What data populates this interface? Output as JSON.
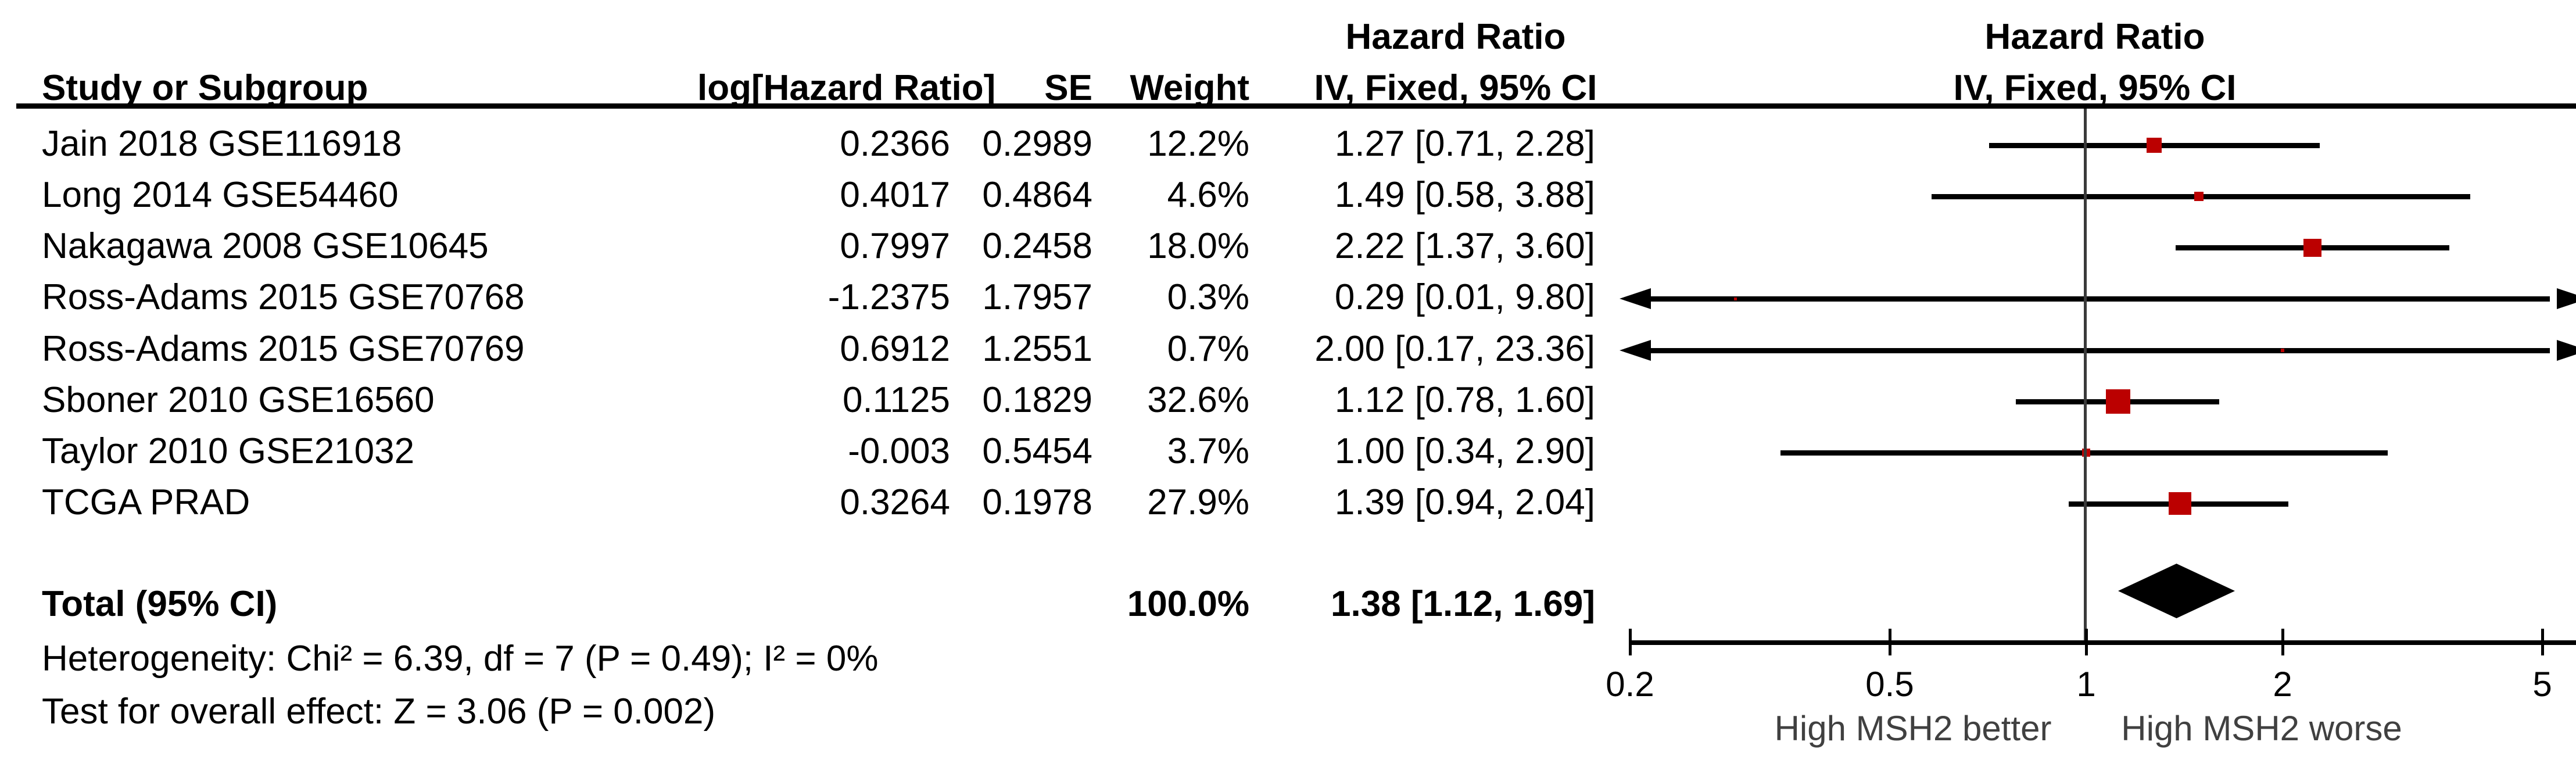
{
  "headers": {
    "left_group_title": "Hazard Ratio",
    "col_study": "Study or Subgroup",
    "col_loghr": "log[Hazard Ratio]",
    "col_se": "SE",
    "col_weight": "Weight",
    "col_ci": "IV, Fixed, 95% CI",
    "plot_group_title": "Hazard Ratio",
    "plot_col_ci": "IV, Fixed, 95% CI"
  },
  "footnotes": {
    "heterogeneity": "Heterogeneity: Chi² = 6.39, df = 7 (P = 0.49); I² = 0%",
    "overall_effect": "Test for overall effect: Z = 3.06 (P = 0.002)"
  },
  "colors": {
    "marker_red": "#bb0000",
    "line_black": "#000000",
    "vline_gray": "#3a3a3a",
    "axis_label_gray": "#404040"
  },
  "chart_data": {
    "type": "forest",
    "effect_measure": "Hazard Ratio",
    "model": "IV, Fixed, 95% CI",
    "x_scale": "log",
    "x_range": [
      0.2,
      5
    ],
    "x_ticks": [
      "0.2",
      "0.5",
      "1",
      "2",
      "5"
    ],
    "x_tick_values": [
      0.2,
      0.5,
      1,
      2,
      5
    ],
    "axis_label_left": "High MSH2 better",
    "axis_label_right": "High MSH2 worse",
    "studies": [
      {
        "name": "Jain 2018 GSE116918",
        "log_hr": "0.2366",
        "se": "0.2989",
        "weight": "12.2%",
        "weight_pct": 12.2,
        "est": 1.27,
        "lo": 0.71,
        "hi": 2.28,
        "ci_text": "1.27 [0.71, 2.28]"
      },
      {
        "name": "Long 2014 GSE54460",
        "log_hr": "0.4017",
        "se": "0.4864",
        "weight": "4.6%",
        "weight_pct": 4.6,
        "est": 1.49,
        "lo": 0.58,
        "hi": 3.88,
        "ci_text": "1.49 [0.58, 3.88]"
      },
      {
        "name": "Nakagawa 2008 GSE10645",
        "log_hr": "0.7997",
        "se": "0.2458",
        "weight": "18.0%",
        "weight_pct": 18.0,
        "est": 2.22,
        "lo": 1.37,
        "hi": 3.6,
        "ci_text": "2.22 [1.37, 3.60]"
      },
      {
        "name": "Ross-Adams 2015 GSE70768",
        "log_hr": "-1.2375",
        "se": "1.7957",
        "weight": "0.3%",
        "weight_pct": 0.3,
        "est": 0.29,
        "lo": 0.01,
        "hi": 9.8,
        "ci_text": "0.29 [0.01, 9.80]"
      },
      {
        "name": "Ross-Adams 2015 GSE70769",
        "log_hr": "0.6912",
        "se": "1.2551",
        "weight": "0.7%",
        "weight_pct": 0.7,
        "est": 2.0,
        "lo": 0.17,
        "hi": 23.36,
        "ci_text": "2.00 [0.17, 23.36]"
      },
      {
        "name": "Sboner 2010 GSE16560",
        "log_hr": "0.1125",
        "se": "0.1829",
        "weight": "32.6%",
        "weight_pct": 32.6,
        "est": 1.12,
        "lo": 0.78,
        "hi": 1.6,
        "ci_text": "1.12 [0.78, 1.60]"
      },
      {
        "name": "Taylor 2010 GSE21032",
        "log_hr": "-0.003",
        "se": "0.5454",
        "weight": "3.7%",
        "weight_pct": 3.7,
        "est": 1.0,
        "lo": 0.34,
        "hi": 2.9,
        "ci_text": "1.00 [0.34, 2.90]"
      },
      {
        "name": "TCGA PRAD",
        "log_hr": "0.3264",
        "se": "0.1978",
        "weight": "27.9%",
        "weight_pct": 27.9,
        "est": 1.39,
        "lo": 0.94,
        "hi": 2.04,
        "ci_text": "1.39 [0.94, 2.04]"
      }
    ],
    "total": {
      "label": "Total (95% CI)",
      "weight": "100.0%",
      "est": 1.38,
      "lo": 1.12,
      "hi": 1.69,
      "ci_text": "1.38 [1.12, 1.69]"
    }
  }
}
